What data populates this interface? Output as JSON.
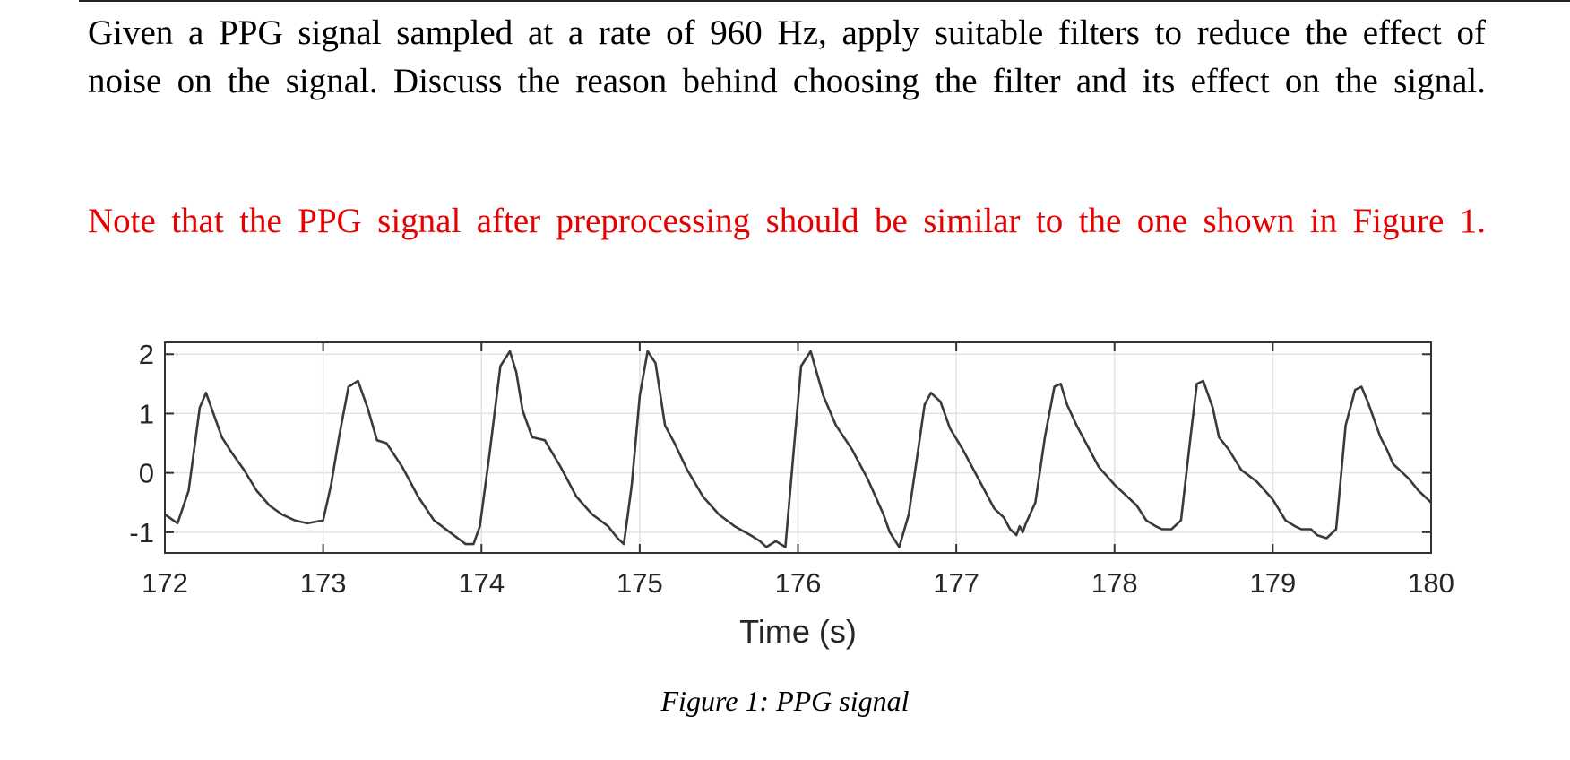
{
  "question": {
    "line1": "Given a PPG signal sampled at a rate of 960 Hz, apply suitable filters to reduce the effect of",
    "line2": "noise on the signal. Discuss the reason behind choosing the filter and its effect on the signal."
  },
  "note": {
    "text": "Note that the PPG signal after preprocessing should be similar to the one shown in Figure 1.",
    "color": "#e60000"
  },
  "figure": {
    "caption": "Figure 1: PPG signal"
  },
  "chart_data": {
    "type": "line",
    "xlabel": "Time (s)",
    "ylabel": "",
    "xlim": [
      172,
      180
    ],
    "ylim": [
      -1.35,
      2.2
    ],
    "x_ticks": [
      172,
      173,
      174,
      175,
      176,
      177,
      178,
      179,
      180
    ],
    "y_ticks": [
      -1,
      0,
      1,
      2
    ],
    "grid": true,
    "line_color": "#3a3a3a",
    "series": [
      {
        "x": [
          172.0,
          172.08,
          172.15,
          172.22,
          172.26,
          172.32,
          172.36,
          172.42,
          172.46,
          172.5,
          172.58,
          172.66,
          172.74,
          172.82,
          172.9,
          173.0,
          173.05,
          173.1,
          173.16,
          173.22,
          173.28,
          173.34,
          173.4,
          173.5,
          173.6,
          173.7,
          173.8,
          173.9,
          173.95,
          173.99,
          174.05,
          174.12,
          174.18,
          174.22,
          174.26,
          174.32,
          174.4,
          174.5,
          174.6,
          174.7,
          174.8,
          174.86,
          174.9,
          174.95,
          175.0,
          175.05,
          175.1,
          175.16,
          175.22,
          175.3,
          175.4,
          175.5,
          175.6,
          175.7,
          175.76,
          175.8,
          175.86,
          175.92,
          175.98,
          176.02,
          176.08,
          176.16,
          176.24,
          176.34,
          176.44,
          176.54,
          176.58,
          176.64,
          176.7,
          176.76,
          176.8,
          176.84,
          176.9,
          176.96,
          177.04,
          177.12,
          177.18,
          177.24,
          177.3,
          177.34,
          177.38,
          177.4,
          177.42,
          177.44,
          177.5,
          177.56,
          177.62,
          177.66,
          177.7,
          177.76,
          177.82,
          177.9,
          178.0,
          178.08,
          178.14,
          178.2,
          178.26,
          178.3,
          178.36,
          178.42,
          178.48,
          178.52,
          178.56,
          178.62,
          178.66,
          178.72,
          178.8,
          178.9,
          179.0,
          179.08,
          179.14,
          179.18,
          179.24,
          179.28,
          179.34,
          179.4,
          179.46,
          179.52,
          179.56,
          179.6,
          179.64,
          179.68,
          179.72,
          179.76,
          179.8,
          179.86,
          179.92,
          180.0
        ],
        "y": [
          -0.7,
          -0.85,
          -0.3,
          1.1,
          1.35,
          0.9,
          0.6,
          0.35,
          0.2,
          0.05,
          -0.3,
          -0.55,
          -0.7,
          -0.8,
          -0.85,
          -0.8,
          -0.2,
          0.6,
          1.45,
          1.55,
          1.1,
          0.55,
          0.5,
          0.1,
          -0.4,
          -0.8,
          -1.0,
          -1.2,
          -1.2,
          -0.9,
          0.3,
          1.8,
          2.05,
          1.7,
          1.05,
          0.6,
          0.55,
          0.1,
          -0.4,
          -0.7,
          -0.9,
          -1.1,
          -1.2,
          -0.2,
          1.3,
          2.05,
          1.85,
          0.8,
          0.5,
          0.05,
          -0.4,
          -0.7,
          -0.9,
          -1.05,
          -1.15,
          -1.25,
          -1.15,
          -1.25,
          0.6,
          1.8,
          2.05,
          1.3,
          0.8,
          0.4,
          -0.1,
          -0.7,
          -1.0,
          -1.25,
          -0.7,
          0.4,
          1.15,
          1.35,
          1.2,
          0.75,
          0.4,
          0.0,
          -0.3,
          -0.6,
          -0.75,
          -0.95,
          -1.05,
          -0.9,
          -1.0,
          -0.85,
          -0.5,
          0.6,
          1.45,
          1.5,
          1.15,
          0.8,
          0.5,
          0.1,
          -0.2,
          -0.4,
          -0.55,
          -0.8,
          -0.9,
          -0.95,
          -0.95,
          -0.8,
          0.6,
          1.5,
          1.55,
          1.1,
          0.6,
          0.4,
          0.05,
          -0.15,
          -0.45,
          -0.8,
          -0.9,
          -0.95,
          -0.95,
          -1.05,
          -1.1,
          -0.95,
          0.8,
          1.4,
          1.45,
          1.2,
          0.9,
          0.6,
          0.4,
          0.15,
          0.05,
          -0.1,
          -0.3,
          -0.5
        ]
      }
    ]
  }
}
